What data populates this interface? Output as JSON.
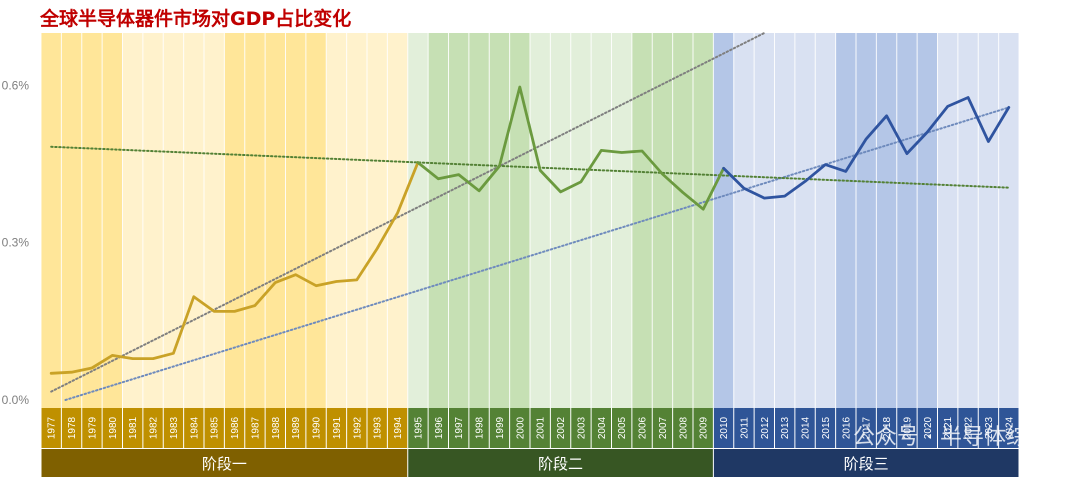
{
  "chart_data": {
    "type": "line",
    "title": "全球半导体器件市场对GDP占比变化",
    "xlabel": "",
    "ylabel": "",
    "x": [
      1977,
      1978,
      1979,
      1980,
      1981,
      1982,
      1983,
      1984,
      1985,
      1986,
      1987,
      1988,
      1989,
      1990,
      1991,
      1992,
      1993,
      1994,
      1995,
      1996,
      1997,
      1998,
      1999,
      2000,
      2001,
      2002,
      2003,
      2004,
      2005,
      2006,
      2007,
      2008,
      2009,
      2010,
      2011,
      2012,
      2013,
      2014,
      2015,
      2016,
      2017,
      2018,
      2019,
      2020,
      2021,
      2022,
      2023,
      2024
    ],
    "series": [
      {
        "phase": 0,
        "color": "#c9a227",
        "points": [
          [
            1977,
            0.051
          ],
          [
            1978,
            0.053
          ],
          [
            1979,
            0.061
          ],
          [
            1980,
            0.085
          ],
          [
            1981,
            0.079
          ],
          [
            1982,
            0.079
          ],
          [
            1983,
            0.089
          ],
          [
            1984,
            0.197
          ],
          [
            1985,
            0.169
          ],
          [
            1986,
            0.169
          ],
          [
            1987,
            0.18
          ],
          [
            1988,
            0.224
          ],
          [
            1989,
            0.239
          ],
          [
            1990,
            0.218
          ],
          [
            1991,
            0.226
          ],
          [
            1992,
            0.229
          ],
          [
            1993,
            0.289
          ],
          [
            1994,
            0.357
          ],
          [
            1995,
            0.453
          ]
        ]
      },
      {
        "phase": 1,
        "color": "#6b9a3f",
        "points": [
          [
            1995,
            0.453
          ],
          [
            1996,
            0.422
          ],
          [
            1997,
            0.43
          ],
          [
            1998,
            0.399
          ],
          [
            1999,
            0.446
          ],
          [
            2000,
            0.597
          ],
          [
            2001,
            0.438
          ],
          [
            2002,
            0.397
          ],
          [
            2003,
            0.416
          ],
          [
            2004,
            0.476
          ],
          [
            2005,
            0.472
          ],
          [
            2006,
            0.475
          ],
          [
            2007,
            0.431
          ],
          [
            2008,
            0.396
          ],
          [
            2009,
            0.364
          ],
          [
            2010,
            0.442
          ]
        ]
      },
      {
        "phase": 2,
        "color": "#2f54a0",
        "points": [
          [
            2010,
            0.442
          ],
          [
            2011,
            0.404
          ],
          [
            2012,
            0.385
          ],
          [
            2013,
            0.389
          ],
          [
            2014,
            0.417
          ],
          [
            2015,
            0.449
          ],
          [
            2016,
            0.436
          ],
          [
            2017,
            0.498
          ],
          [
            2018,
            0.542
          ],
          [
            2019,
            0.47
          ],
          [
            2020,
            0.511
          ],
          [
            2021,
            0.56
          ],
          [
            2022,
            0.577
          ],
          [
            2023,
            0.493
          ],
          [
            2024,
            0.558
          ]
        ]
      }
    ],
    "trendlines": [
      {
        "style": "dotted",
        "color": "#7f7f7f",
        "from": [
          1977.0,
          0.016
        ],
        "to": [
          2012.0,
          0.7
        ]
      },
      {
        "style": "dotted",
        "color": "#6f8bbd",
        "from": [
          1977.7,
          0.0
        ],
        "to": [
          2024.0,
          0.558
        ]
      },
      {
        "style": "dotted",
        "color": "#538135",
        "from": [
          1977.0,
          0.483
        ],
        "to": [
          2024.0,
          0.405
        ]
      }
    ],
    "ylim": [
      0,
      0.7
    ],
    "yticks": [
      0,
      0.3,
      0.6
    ],
    "ytick_labels": [
      "0.0%",
      "0.3%",
      "0.6%"
    ],
    "grid": "vertical lines per year",
    "legend": "none",
    "phases": [
      {
        "label": "阶段一",
        "start": 1977,
        "end": 1994,
        "bar_color": "#7f6000",
        "tick_color": "#bf9000",
        "bands": [
          {
            "start": 1977,
            "end": 1980,
            "color": "#ffe699"
          },
          {
            "start": 1981,
            "end": 1985,
            "color": "#fff2cc"
          },
          {
            "start": 1986,
            "end": 1990,
            "color": "#ffe699"
          },
          {
            "start": 1991,
            "end": 1994,
            "color": "#fff2cc"
          }
        ]
      },
      {
        "label": "阶段二",
        "start": 1995,
        "end": 2009,
        "bar_color": "#375623",
        "tick_color": "#548235",
        "bands": [
          {
            "start": 1995,
            "end": 1995,
            "color": "#e2efda"
          },
          {
            "start": 1996,
            "end": 2000,
            "color": "#c6e0b4"
          },
          {
            "start": 2001,
            "end": 2005,
            "color": "#e2efda"
          },
          {
            "start": 2006,
            "end": 2009,
            "color": "#c6e0b4"
          }
        ]
      },
      {
        "label": "阶段三",
        "start": 2010,
        "end": 2024,
        "bar_color": "#1f3864",
        "tick_color": "#2f5597",
        "bands": [
          {
            "start": 2010,
            "end": 2010,
            "color": "#b4c6e7"
          },
          {
            "start": 2011,
            "end": 2015,
            "color": "#d9e1f2"
          },
          {
            "start": 2016,
            "end": 2020,
            "color": "#b4c6e7"
          },
          {
            "start": 2021,
            "end": 2024,
            "color": "#d9e1f2"
          }
        ]
      }
    ],
    "watermark": "公众号 · 半导体综研"
  }
}
